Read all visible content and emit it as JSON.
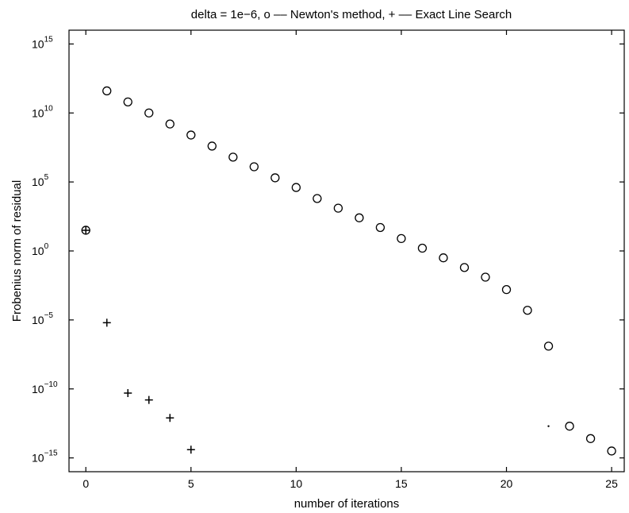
{
  "chart_data": {
    "type": "scatter",
    "title": "delta = 1e−6,  o –– Newton's method,  + –– Exact Line Search",
    "xlabel": "number of iterations",
    "ylabel": "Frobenius norm of residual",
    "xlim": [
      -0.8,
      25.6
    ],
    "ylim_exp": [
      -16,
      16
    ],
    "y_scale": "log",
    "xticks": [
      "0",
      "5",
      "10",
      "15",
      "20",
      "25"
    ],
    "yticks": [
      {
        "base": "10",
        "exp": "15"
      },
      {
        "base": "10",
        "exp": "10"
      },
      {
        "base": "10",
        "exp": "5"
      },
      {
        "base": "10",
        "exp": "0"
      },
      {
        "base": "10",
        "exp": "−5"
      },
      {
        "base": "10",
        "exp": "−10"
      },
      {
        "base": "10",
        "exp": "−15"
      }
    ],
    "grid": false,
    "series": [
      {
        "marker": "circle",
        "x": [
          0,
          1,
          2,
          3,
          4,
          5,
          6,
          7,
          8,
          9,
          10,
          11,
          12,
          13,
          14,
          15,
          16,
          17,
          18,
          19,
          20,
          21,
          22,
          23,
          24,
          25
        ],
        "y_log10": [
          1.5,
          11.6,
          10.8,
          10.0,
          9.2,
          8.4,
          7.6,
          6.8,
          6.1,
          5.3,
          4.6,
          3.8,
          3.1,
          2.4,
          1.7,
          0.9,
          0.2,
          -0.5,
          -1.2,
          -1.9,
          -2.8,
          -4.3,
          -6.9,
          -12.7,
          -13.6,
          -14.5
        ]
      },
      {
        "marker": "plus",
        "x": [
          0,
          1,
          2,
          3,
          4,
          5
        ],
        "y_log10": [
          1.5,
          -5.2,
          -10.3,
          -10.8,
          -12.1,
          -14.4
        ]
      },
      {
        "marker": "dot",
        "x": [
          22
        ],
        "y_log10": [
          -12.7
        ]
      }
    ]
  }
}
